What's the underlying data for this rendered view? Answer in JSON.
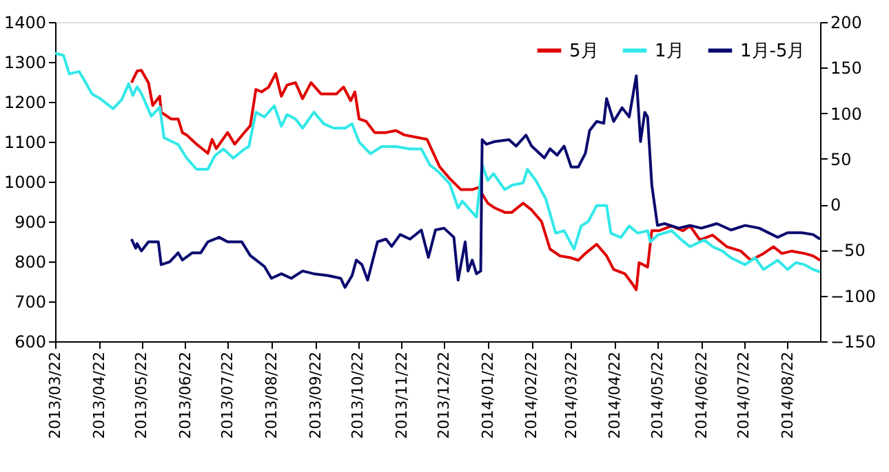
{
  "chart_data": {
    "type": "line",
    "xlim": [
      "2013-03-22",
      "2014-09-14"
    ],
    "xticks": [
      {
        "value": "2013-03-22",
        "label": "2013/03/22"
      },
      {
        "value": "2013-04-22",
        "label": "2013/04/22"
      },
      {
        "value": "2013-05-22",
        "label": "2013/05/22"
      },
      {
        "value": "2013-06-22",
        "label": "2013/06/22"
      },
      {
        "value": "2013-07-22",
        "label": "2013/07/22"
      },
      {
        "value": "2013-08-22",
        "label": "2013/08/22"
      },
      {
        "value": "2013-09-22",
        "label": "2013/09/22"
      },
      {
        "value": "2013-10-22",
        "label": "2013/10/22"
      },
      {
        "value": "2013-11-22",
        "label": "2013/11/22"
      },
      {
        "value": "2013-12-22",
        "label": "2013/12/22"
      },
      {
        "value": "2014-01-22",
        "label": "2014/01/22"
      },
      {
        "value": "2014-02-22",
        "label": "2014/02/22"
      },
      {
        "value": "2014-03-22",
        "label": "2014/03/22"
      },
      {
        "value": "2014-04-22",
        "label": "2014/04/22"
      },
      {
        "value": "2014-05-22",
        "label": "2014/05/22"
      },
      {
        "value": "2014-06-22",
        "label": "2014/06/22"
      },
      {
        "value": "2014-07-22",
        "label": "2014/07/22"
      },
      {
        "value": "2014-08-22",
        "label": "2014/08/22"
      }
    ],
    "ylim": [
      600,
      1400
    ],
    "yticks": [
      600,
      700,
      800,
      900,
      1000,
      1100,
      1200,
      1300,
      1400
    ],
    "y2lim": [
      -150,
      200
    ],
    "y2ticks": [
      -150,
      -100,
      -50,
      0,
      50,
      100,
      150,
      200
    ],
    "grid": false,
    "legend": "top right",
    "series": [
      {
        "name": "5月",
        "color": "#e00000",
        "x": [
          "2013-05-15",
          "2013-05-19",
          "2013-05-22",
          "2013-05-27",
          "2013-05-30",
          "2013-06-04",
          "2013-06-05",
          "2013-06-12",
          "2013-06-17",
          "2013-06-20",
          "2013-06-23",
          "2013-06-30",
          "2013-07-08",
          "2013-07-11",
          "2013-07-14",
          "2013-07-22",
          "2013-07-27",
          "2013-08-04",
          "2013-08-07",
          "2013-08-11",
          "2013-08-15",
          "2013-08-20",
          "2013-08-25",
          "2013-08-29",
          "2013-09-02",
          "2013-09-08",
          "2013-09-13",
          "2013-09-19",
          "2013-09-26",
          "2013-10-07",
          "2013-10-12",
          "2013-10-17",
          "2013-10-20",
          "2013-10-23",
          "2013-10-28",
          "2013-11-03",
          "2013-11-11",
          "2013-11-18",
          "2013-11-24",
          "2013-12-10",
          "2013-12-19",
          "2013-12-26",
          "2014-01-03",
          "2014-01-11",
          "2014-01-16",
          "2014-01-18",
          "2014-01-22",
          "2014-01-27",
          "2014-02-03",
          "2014-02-08",
          "2014-02-16",
          "2014-02-22",
          "2014-03-01",
          "2014-03-07",
          "2014-03-14",
          "2014-03-22",
          "2014-03-27",
          "2014-04-01",
          "2014-04-09",
          "2014-04-16",
          "2014-04-21",
          "2014-04-29",
          "2014-05-05",
          "2014-05-07",
          "2014-05-09",
          "2014-05-15",
          "2014-05-18",
          "2014-05-23",
          "2014-06-01",
          "2014-06-09",
          "2014-06-14",
          "2014-06-21",
          "2014-06-30",
          "2014-07-10",
          "2014-07-20",
          "2014-07-27",
          "2014-08-05",
          "2014-08-12",
          "2014-08-18",
          "2014-08-25",
          "2014-09-03",
          "2014-09-09",
          "2014-09-14"
        ],
        "values": [
          1248,
          1277,
          1279,
          1248,
          1191,
          1214,
          1174,
          1157,
          1157,
          1123,
          1117,
          1094,
          1071,
          1106,
          1083,
          1123,
          1094,
          1128,
          1140,
          1231,
          1225,
          1237,
          1271,
          1214,
          1242,
          1248,
          1208,
          1248,
          1220,
          1220,
          1237,
          1203,
          1225,
          1157,
          1151,
          1123,
          1123,
          1128,
          1117,
          1106,
          1037,
          1008,
          980,
          980,
          986,
          969,
          946,
          934,
          923,
          923,
          946,
          929,
          900,
          831,
          814,
          809,
          803,
          820,
          843,
          814,
          780,
          769,
          740,
          729,
          797,
          786,
          877,
          877,
          889,
          877,
          889,
          854,
          866,
          837,
          826,
          803,
          820,
          837,
          820,
          826,
          820,
          814,
          803
        ]
      },
      {
        "name": "1月",
        "color": "#33e8e8",
        "x": [
          "2013-03-22",
          "2013-03-28",
          "2013-04-01",
          "2013-04-08",
          "2013-04-12",
          "2013-04-17",
          "2013-04-22",
          "2013-05-02",
          "2013-05-08",
          "2013-05-13",
          "2013-05-16",
          "2013-05-19",
          "2013-05-22",
          "2013-05-29",
          "2013-06-04",
          "2013-06-07",
          "2013-06-17",
          "2013-06-23",
          "2013-06-30",
          "2013-07-08",
          "2013-07-13",
          "2013-07-19",
          "2013-07-26",
          "2013-08-03",
          "2013-08-06",
          "2013-08-11",
          "2013-08-17",
          "2013-08-24",
          "2013-08-29",
          "2013-09-02",
          "2013-09-08",
          "2013-09-13",
          "2013-09-21",
          "2013-09-28",
          "2013-10-05",
          "2013-10-13",
          "2013-10-18",
          "2013-10-23",
          "2013-10-31",
          "2013-11-08",
          "2013-11-18",
          "2013-11-28",
          "2013-12-06",
          "2013-12-12",
          "2013-12-18",
          "2013-12-26",
          "2014-01-01",
          "2014-01-04",
          "2014-01-14",
          "2014-01-18",
          "2014-01-22",
          "2014-01-26",
          "2014-02-03",
          "2014-02-08",
          "2014-02-16",
          "2014-02-19",
          "2014-02-25",
          "2014-03-04",
          "2014-03-11",
          "2014-03-17",
          "2014-03-24",
          "2014-03-29",
          "2014-04-03",
          "2014-04-09",
          "2014-04-16",
          "2014-04-19",
          "2014-04-26",
          "2014-05-02",
          "2014-05-08",
          "2014-05-15",
          "2014-05-17",
          "2014-05-22",
          "2014-06-01",
          "2014-06-08",
          "2014-06-14",
          "2014-06-24",
          "2014-06-30",
          "2014-07-07",
          "2014-07-13",
          "2014-07-23",
          "2014-07-30",
          "2014-08-05",
          "2014-08-15",
          "2014-08-22",
          "2014-08-28",
          "2014-09-03",
          "2014-09-09",
          "2014-09-14"
        ],
        "values": [
          1322,
          1316,
          1270,
          1276,
          1252,
          1220,
          1210,
          1183,
          1205,
          1245,
          1216,
          1238,
          1221,
          1164,
          1187,
          1110,
          1093,
          1059,
          1031,
          1031,
          1065,
          1082,
          1059,
          1082,
          1088,
          1174,
          1162,
          1190,
          1139,
          1168,
          1157,
          1134,
          1174,
          1145,
          1134,
          1134,
          1145,
          1099,
          1070,
          1088,
          1088,
          1082,
          1082,
          1042,
          1025,
          995,
          934,
          951,
          911,
          1043,
          1003,
          1020,
          980,
          991,
          997,
          1031,
          1003,
          957,
          871,
          877,
          831,
          889,
          900,
          940,
          940,
          871,
          860,
          889,
          871,
          877,
          849,
          866,
          877,
          854,
          837,
          854,
          837,
          826,
          809,
          792,
          809,
          780,
          803,
          780,
          797,
          792,
          780,
          774
        ]
      },
      {
        "name": "1月-5月",
        "color": "#0a0a6e",
        "axis": "y2",
        "x": [
          "2013-05-15",
          "2013-05-18",
          "2013-05-19",
          "2013-05-22",
          "2013-05-27",
          "2013-06-03",
          "2013-06-05",
          "2013-06-11",
          "2013-06-17",
          "2013-06-20",
          "2013-06-27",
          "2013-07-03",
          "2013-07-08",
          "2013-07-16",
          "2013-07-22",
          "2013-08-01",
          "2013-08-07",
          "2013-08-17",
          "2013-08-22",
          "2013-08-29",
          "2013-09-05",
          "2013-09-13",
          "2013-09-21",
          "2013-10-01",
          "2013-10-10",
          "2013-10-13",
          "2013-10-18",
          "2013-10-21",
          "2013-10-25",
          "2013-10-29",
          "2013-11-05",
          "2013-11-11",
          "2013-11-15",
          "2013-11-21",
          "2013-11-28",
          "2013-12-06",
          "2013-12-11",
          "2013-12-16",
          "2013-12-22",
          "2013-12-29",
          "2014-01-01",
          "2014-01-06",
          "2014-01-08",
          "2014-01-11",
          "2014-01-14",
          "2014-01-17",
          "2014-01-18",
          "2014-01-21",
          "2014-01-27",
          "2014-02-06",
          "2014-02-11",
          "2014-02-18",
          "2014-02-22",
          "2014-03-03",
          "2014-03-07",
          "2014-03-12",
          "2014-03-17",
          "2014-03-22",
          "2014-03-27",
          "2014-04-01",
          "2014-04-04",
          "2014-04-09",
          "2014-04-14",
          "2014-04-16",
          "2014-04-21",
          "2014-04-27",
          "2014-05-02",
          "2014-05-07",
          "2014-05-10",
          "2014-05-13",
          "2014-05-15",
          "2014-05-18",
          "2014-05-22",
          "2014-05-27",
          "2014-06-06",
          "2014-06-14",
          "2014-06-22",
          "2014-07-03",
          "2014-07-13",
          "2014-07-23",
          "2014-08-02",
          "2014-08-15",
          "2014-08-22",
          "2014-09-01",
          "2014-09-09",
          "2014-09-14"
        ],
        "values": [
          -38,
          -48,
          -43,
          -51,
          -41,
          -41,
          -66,
          -63,
          -53,
          -61,
          -53,
          -53,
          -41,
          -36,
          -41,
          -41,
          -56,
          -68,
          -81,
          -76,
          -81,
          -73,
          -76,
          -78,
          -81,
          -91,
          -78,
          -61,
          -66,
          -83,
          -41,
          -38,
          -46,
          -33,
          -38,
          -28,
          -58,
          -28,
          -26,
          -36,
          -83,
          -41,
          -73,
          -61,
          -76,
          -73,
          71,
          66,
          69,
          71,
          64,
          76,
          64,
          51,
          61,
          54,
          64,
          41,
          41,
          56,
          81,
          91,
          89,
          116,
          91,
          106,
          96,
          141,
          69,
          101,
          96,
          21,
          -23,
          -21,
          -26,
          -23,
          -26,
          -21,
          -28,
          -23,
          -26,
          -36,
          -31,
          -31,
          -33,
          -38
        ]
      }
    ]
  }
}
